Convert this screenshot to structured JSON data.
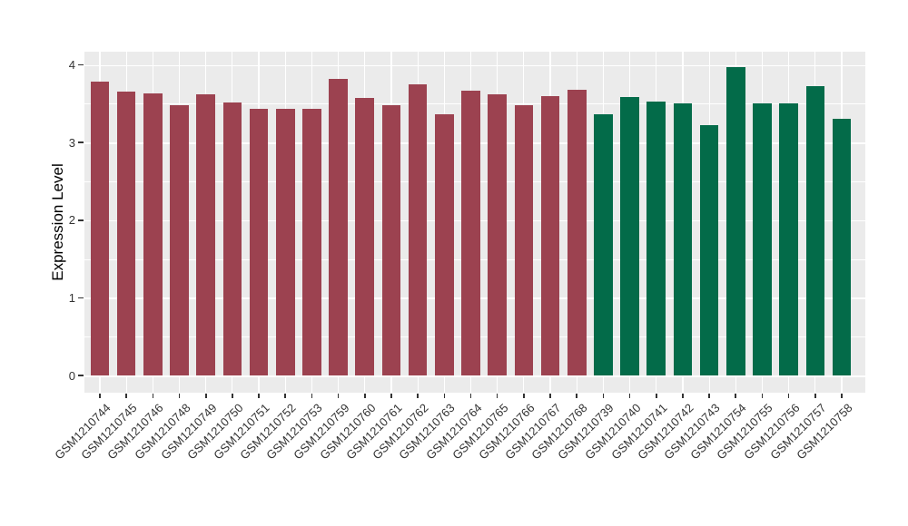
{
  "figure": {
    "ylabel": "Expression Level",
    "xlabel": "",
    "title": ""
  },
  "colors": {
    "background": "#FFFFFF",
    "panel_bg": "#EBEBEB",
    "gridline": "#FFFFFF",
    "tick_mark": "#333333",
    "axis_text": "#333333",
    "axis_title": "#000000",
    "group_maroon": "#9C4250",
    "group_green": "#036B49"
  },
  "chart_data": {
    "type": "bar",
    "title": "",
    "xlabel": "",
    "ylabel": "Expression Level",
    "ylim": [
      0,
      4
    ],
    "yticks": [
      0,
      1,
      2,
      3,
      4
    ],
    "grid": {
      "major_y_interval": 1.0,
      "minor_y_interval": 0.5,
      "vertical": "one major gridline per category center",
      "gridline_color": "#FFFFFF",
      "panel_background": "#EBEBEB"
    },
    "legend": "none",
    "x_tick_rotation_deg": 45,
    "categories": [
      "GSM1210744",
      "GSM1210745",
      "GSM1210746",
      "GSM1210748",
      "GSM1210749",
      "GSM1210750",
      "GSM1210751",
      "GSM1210752",
      "GSM1210753",
      "GSM1210759",
      "GSM1210760",
      "GSM1210761",
      "GSM1210762",
      "GSM1210763",
      "GSM1210764",
      "GSM1210765",
      "GSM1210766",
      "GSM1210767",
      "GSM1210768",
      "GSM1210739",
      "GSM1210740",
      "GSM1210741",
      "GSM1210742",
      "GSM1210743",
      "GSM1210754",
      "GSM1210755",
      "GSM1210756",
      "GSM1210757",
      "GSM1210758"
    ],
    "values": [
      3.78,
      3.66,
      3.63,
      3.48,
      3.62,
      3.52,
      3.43,
      3.43,
      3.44,
      3.82,
      3.58,
      3.48,
      3.75,
      3.37,
      3.67,
      3.62,
      3.48,
      3.6,
      3.68,
      3.36,
      3.59,
      3.53,
      3.5,
      3.22,
      3.97,
      3.51,
      3.5,
      3.73,
      3.31
    ],
    "series": [
      {
        "name": "maroon-group",
        "color": "#9C4250",
        "categories_start": "GSM1210744",
        "categories_end": "GSM1210768",
        "count": 19
      },
      {
        "name": "green-group",
        "color": "#036B49",
        "categories_start": "GSM1210739",
        "categories_end": "GSM1210758",
        "count": 10
      }
    ],
    "bar_group_index": [
      0,
      0,
      0,
      0,
      0,
      0,
      0,
      0,
      0,
      0,
      0,
      0,
      0,
      0,
      0,
      0,
      0,
      0,
      0,
      1,
      1,
      1,
      1,
      1,
      1,
      1,
      1,
      1,
      1
    ]
  }
}
